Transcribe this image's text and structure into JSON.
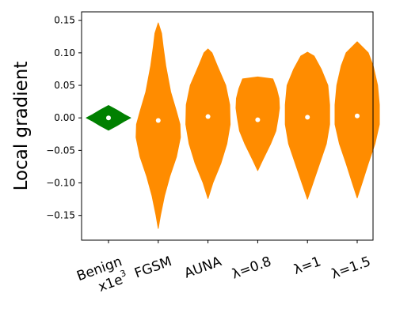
{
  "chart_data": {
    "type": "violin",
    "ylabel": "Local gradient",
    "ylim": [
      -0.188,
      0.163
    ],
    "yticks": [
      {
        "value": 0.15,
        "label": "0.15"
      },
      {
        "value": 0.1,
        "label": "0.10"
      },
      {
        "value": 0.05,
        "label": "0.05"
      },
      {
        "value": 0.0,
        "label": "0.00"
      },
      {
        "value": -0.05,
        "label": "−0.05"
      },
      {
        "value": -0.1,
        "label": "−0.10"
      },
      {
        "value": -0.15,
        "label": "−0.15"
      }
    ],
    "categories": [
      {
        "label": "Benign",
        "sub_label": "x1e",
        "sub_label_exp": "3"
      },
      {
        "label": "FGSM"
      },
      {
        "label": "AUNA"
      },
      {
        "label": "λ=0.8"
      },
      {
        "label": "λ=1"
      },
      {
        "label": "λ=1.5"
      }
    ],
    "colors": {
      "benign": "#008000",
      "adversarial": "#ff8c00",
      "median": "#ffffff"
    },
    "series": [
      {
        "color_key": "benign",
        "median": 0.0,
        "min": -0.019,
        "max": 0.019,
        "profile": [
          [
            -0.019,
            0
          ],
          [
            -0.012,
            0.38
          ],
          [
            -0.005,
            0.72
          ],
          [
            0.0,
            1.0
          ],
          [
            0.005,
            0.72
          ],
          [
            0.012,
            0.38
          ],
          [
            0.019,
            0
          ]
        ]
      },
      {
        "color_key": "adversarial",
        "median": -0.004,
        "min": -0.17,
        "max": 0.146,
        "profile": [
          [
            -0.17,
            0
          ],
          [
            -0.15,
            0.1
          ],
          [
            -0.12,
            0.28
          ],
          [
            -0.09,
            0.52
          ],
          [
            -0.06,
            0.82
          ],
          [
            -0.03,
            1.0
          ],
          [
            -0.01,
            0.98
          ],
          [
            0.01,
            0.82
          ],
          [
            0.04,
            0.56
          ],
          [
            0.08,
            0.34
          ],
          [
            0.11,
            0.22
          ],
          [
            0.13,
            0.15
          ],
          [
            0.146,
            0
          ]
        ]
      },
      {
        "color_key": "adversarial",
        "median": 0.002,
        "min": -0.124,
        "max": 0.106,
        "profile": [
          [
            -0.124,
            0
          ],
          [
            -0.1,
            0.22
          ],
          [
            -0.07,
            0.58
          ],
          [
            -0.04,
            0.85
          ],
          [
            -0.01,
            1.0
          ],
          [
            0.02,
            0.98
          ],
          [
            0.05,
            0.8
          ],
          [
            0.08,
            0.42
          ],
          [
            0.1,
            0.18
          ],
          [
            0.106,
            0
          ]
        ]
      },
      {
        "color_key": "adversarial",
        "median": -0.003,
        "min": -0.081,
        "max": 0.063,
        "profile": [
          [
            -0.081,
            0
          ],
          [
            -0.065,
            0.22
          ],
          [
            -0.04,
            0.58
          ],
          [
            -0.02,
            0.82
          ],
          [
            0.0,
            0.92
          ],
          [
            0.015,
            0.98
          ],
          [
            0.03,
            0.96
          ],
          [
            0.045,
            0.85
          ],
          [
            0.06,
            0.68
          ],
          [
            0.063,
            0
          ]
        ]
      },
      {
        "color_key": "adversarial",
        "median": 0.001,
        "min": -0.125,
        "max": 0.101,
        "profile": [
          [
            -0.125,
            0
          ],
          [
            -0.1,
            0.25
          ],
          [
            -0.07,
            0.55
          ],
          [
            -0.04,
            0.85
          ],
          [
            -0.01,
            1.0
          ],
          [
            0.02,
            1.0
          ],
          [
            0.05,
            0.92
          ],
          [
            0.075,
            0.62
          ],
          [
            0.095,
            0.3
          ],
          [
            0.101,
            0
          ]
        ]
      },
      {
        "color_key": "adversarial",
        "median": 0.003,
        "min": -0.123,
        "max": 0.117,
        "profile": [
          [
            -0.123,
            0
          ],
          [
            -0.1,
            0.22
          ],
          [
            -0.07,
            0.5
          ],
          [
            -0.04,
            0.8
          ],
          [
            -0.01,
            1.0
          ],
          [
            0.02,
            1.0
          ],
          [
            0.05,
            0.92
          ],
          [
            0.08,
            0.72
          ],
          [
            0.1,
            0.5
          ],
          [
            0.117,
            0
          ]
        ]
      }
    ]
  }
}
